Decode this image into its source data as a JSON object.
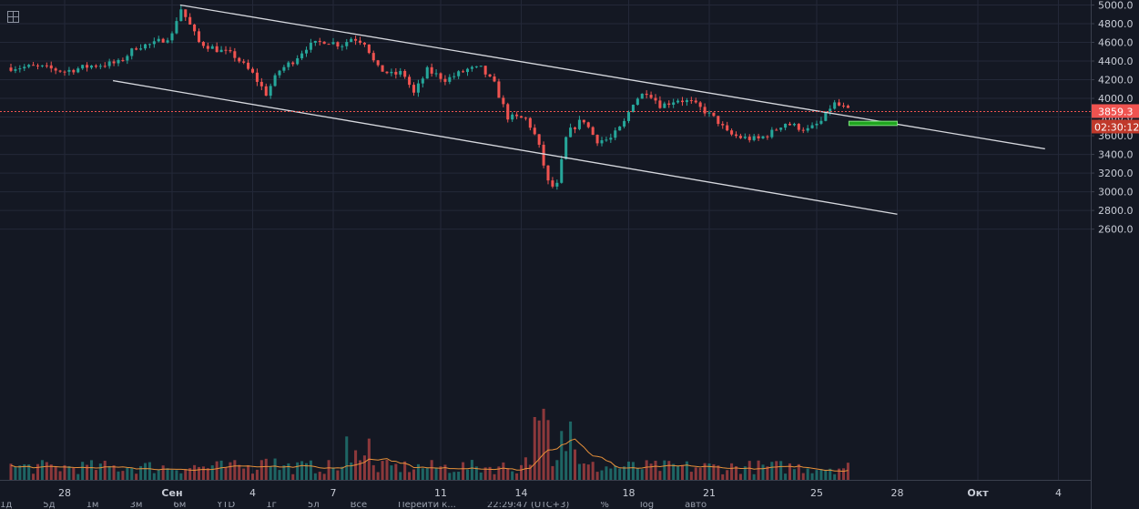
{
  "chart_data": {
    "type": "candlestick",
    "y_axis": {
      "ticks": [
        "5000.0",
        "4800.0",
        "4600.0",
        "4400.0",
        "4200.0",
        "4000.0",
        "3800.0",
        "3600.0",
        "3400.0",
        "3200.0",
        "3000.0",
        "2800.0",
        "2600.0"
      ],
      "ylim": [
        2450,
        5020
      ],
      "position": "right"
    },
    "x_axis": {
      "ticks": [
        {
          "label": "28",
          "day": -3,
          "bold": false
        },
        {
          "label": "Сен",
          "day": 1,
          "bold": true
        },
        {
          "label": "4",
          "day": 4,
          "bold": false
        },
        {
          "label": "7",
          "day": 7,
          "bold": false
        },
        {
          "label": "11",
          "day": 11,
          "bold": false
        },
        {
          "label": "14",
          "day": 14,
          "bold": false
        },
        {
          "label": "18",
          "day": 18,
          "bold": false
        },
        {
          "label": "21",
          "day": 21,
          "bold": false
        },
        {
          "label": "25",
          "day": 25,
          "bold": false
        },
        {
          "label": "28",
          "day": 28,
          "bold": false
        },
        {
          "label": "Окт",
          "day": 31,
          "bold": true
        },
        {
          "label": "4",
          "day": 34,
          "bold": false
        }
      ]
    },
    "last_price": "3859.3",
    "countdown": "02:30:12",
    "colors": {
      "up": "#26a69a",
      "down": "#ef5350",
      "trend": "#d6d8de",
      "volume_ma": "#e8913a",
      "zone": "#1fa51f",
      "price_line": "#ef5350"
    },
    "trendlines": [
      {
        "from": {
          "day": 1.3,
          "price": 5000
        },
        "to": {
          "day": 33.5,
          "price": 3460
        }
      },
      {
        "from": {
          "day": -1.2,
          "price": 4190
        },
        "to": {
          "day": 28,
          "price": 2760
        }
      }
    ],
    "zone": {
      "day_start": 26.2,
      "day_end": 28.0,
      "price_top": 3755,
      "price_bottom": 3710
    },
    "price_path": [
      [
        -5.0,
        4330
      ],
      [
        -4.0,
        4340
      ],
      [
        -3.0,
        4290
      ],
      [
        -2.0,
        4350
      ],
      [
        -1.0,
        4380
      ],
      [
        -0.3,
        4560
      ],
      [
        0.3,
        4580
      ],
      [
        1.0,
        4680
      ],
      [
        1.3,
        4980
      ],
      [
        2.0,
        4600
      ],
      [
        2.7,
        4520
      ],
      [
        3.3,
        4460
      ],
      [
        4.0,
        4260
      ],
      [
        4.5,
        4050
      ],
      [
        5.0,
        4300
      ],
      [
        5.5,
        4400
      ],
      [
        6.0,
        4550
      ],
      [
        6.7,
        4620
      ],
      [
        7.3,
        4570
      ],
      [
        7.7,
        4650
      ],
      [
        8.2,
        4600
      ],
      [
        8.6,
        4330
      ],
      [
        9.2,
        4250
      ],
      [
        9.6,
        4280
      ],
      [
        10.0,
        4050
      ],
      [
        10.5,
        4300
      ],
      [
        11.2,
        4200
      ],
      [
        12.0,
        4310
      ],
      [
        12.5,
        4320
      ],
      [
        13.0,
        4150
      ],
      [
        13.5,
        3800
      ],
      [
        14.2,
        3780
      ],
      [
        14.6,
        3550
      ],
      [
        15.0,
        3100
      ],
      [
        15.3,
        3020
      ],
      [
        15.7,
        3620
      ],
      [
        16.3,
        3780
      ],
      [
        16.8,
        3550
      ],
      [
        17.3,
        3560
      ],
      [
        17.8,
        3720
      ],
      [
        18.2,
        3980
      ],
      [
        18.7,
        4080
      ],
      [
        19.2,
        3920
      ],
      [
        19.8,
        3990
      ],
      [
        20.3,
        3960
      ],
      [
        20.8,
        3870
      ],
      [
        21.3,
        3760
      ],
      [
        21.7,
        3620
      ],
      [
        22.2,
        3580
      ],
      [
        22.8,
        3560
      ],
      [
        23.3,
        3630
      ],
      [
        23.8,
        3740
      ],
      [
        24.2,
        3700
      ],
      [
        24.7,
        3660
      ],
      [
        25.2,
        3760
      ],
      [
        25.6,
        3950
      ],
      [
        26.0,
        3900
      ],
      [
        26.2,
        3859
      ]
    ]
  },
  "volume_label_hidden": "",
  "toolbar": [
    "1д",
    "5д",
    "1м",
    "3м",
    "6м",
    "YTD",
    "1г",
    "5л",
    "Все",
    "Перейти к...",
    "22:29:47 (UTC+3)",
    "%",
    "log",
    "авто"
  ]
}
